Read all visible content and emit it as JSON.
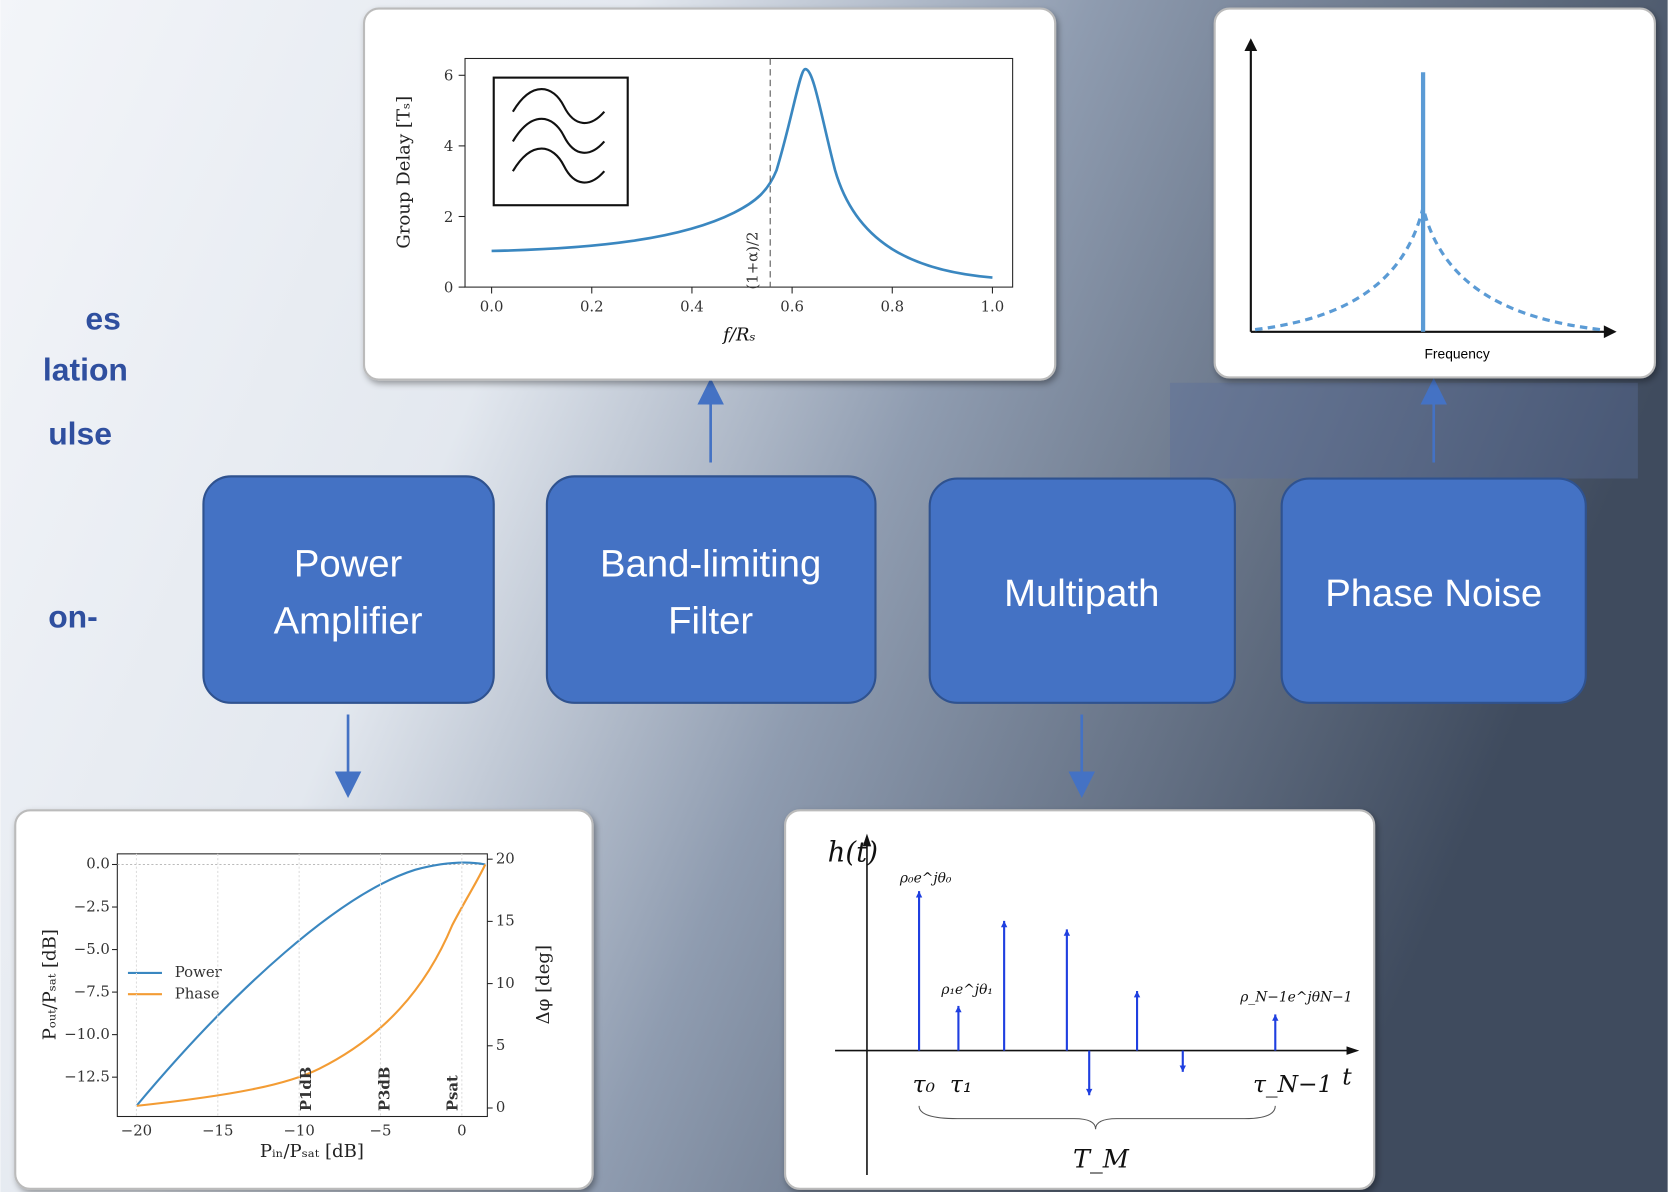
{
  "side_text": [
    "es",
    "lation",
    "ulse",
    "on-"
  ],
  "blocks": [
    {
      "lines": [
        "Power",
        "Amplifier"
      ]
    },
    {
      "lines": [
        "Band-limiting",
        "Filter"
      ]
    },
    {
      "lines": [
        "Multipath"
      ]
    },
    {
      "lines": [
        "Phase Noise"
      ]
    }
  ],
  "group_delay_plot": {
    "y_label": "Group Delay [Tₛ]",
    "x_label": "f/Rₛ",
    "x_ticks": [
      "0.0",
      "0.2",
      "0.4",
      "0.6",
      "0.8",
      "1.0"
    ],
    "y_ticks": [
      "0",
      "2",
      "4",
      "6"
    ],
    "marker": "(1+α)/2"
  },
  "phase_noise_plot": {
    "x_label": "Frequency"
  },
  "pa_plot": {
    "x_label": "Pᵢₙ/Pₛₐₜ [dB]",
    "y_label": "Pₒᵤₜ/Pₛₐₜ [dB]",
    "y2_label": "Δφ [deg]",
    "x_ticks": [
      "−20",
      "−15",
      "−10",
      "−5",
      "0"
    ],
    "y_ticks": [
      "0.0",
      "−2.5",
      "−5.0",
      "−7.5",
      "−10.0",
      "−12.5"
    ],
    "y2_ticks": [
      "0",
      "5",
      "10",
      "15",
      "20"
    ],
    "legend": [
      "Power",
      "Phase"
    ],
    "markers": [
      "P1dB",
      "P3dB",
      "Psat"
    ]
  },
  "multipath_plot": {
    "y_label": "h(t)",
    "x_label": "t",
    "span_label": "T_M",
    "taps": [
      "τ₀",
      "τ₁",
      "τ_N−1"
    ],
    "gains": [
      "ρ₀e^jθ₀",
      "ρ₁e^jθ₁",
      "ρ_N−1e^jθN−1"
    ]
  }
}
